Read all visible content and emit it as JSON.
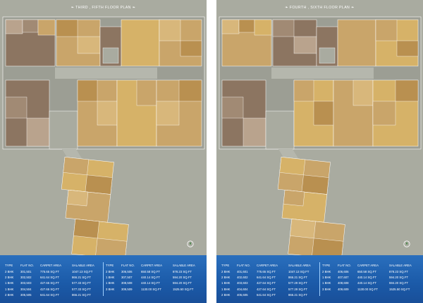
{
  "panels": [
    {
      "title": "THIRD , FIFTH FLOOR PLAN",
      "table": {
        "headers": [
          "TYPE",
          "FLAT NO.",
          "CARPET AREA",
          "SALABLE AREA"
        ],
        "rows_left": [
          [
            "2 BHK",
            "301,501",
            "775.65 SQ.FT",
            "1047.13 SQ.FT"
          ],
          [
            "2 BHK",
            "302,502",
            "641.64 SQ.FT",
            "866.21 SQ.FT"
          ],
          [
            "1 BHK",
            "303,503",
            "427.65 SQ.FT",
            "577.33 SQ.FT"
          ],
          [
            "1 BHK",
            "304,504",
            "427.65 SQ.FT",
            "577.33 SQ.FT"
          ],
          [
            "2 BHK",
            "305,505",
            "641.64 SQ.FT",
            "866.21 SQ.FT"
          ]
        ],
        "rows_right": [
          [
            "2 BHK",
            "306,506",
            "650.58 SQ.FT",
            "878.23 SQ.FT"
          ],
          [
            "1 BHK",
            "307,507",
            "440.14 SQ.FT",
            "594.20 SQ.FT"
          ],
          [
            "1 BHK",
            "308,508",
            "440.14 SQ.FT",
            "594.20 SQ.FT"
          ],
          [
            "3 BHK",
            "309,509",
            "1130.00 SQ.FT",
            "1525.50 SQ.FT"
          ]
        ]
      }
    },
    {
      "title": "FOURTH , SIXTH FLOOR PLAN",
      "table": {
        "headers": [
          "TYPE",
          "FLAT NO.",
          "CARPET AREA",
          "SALABLE AREA"
        ],
        "rows_left": [
          [
            "2 BHK",
            "401,601",
            "775.65 SQ.FT",
            "1047.13 SQ.FT"
          ],
          [
            "2 BHK",
            "402,602",
            "641.64 SQ.FT",
            "866.21 SQ.FT"
          ],
          [
            "1 BHK",
            "403,603",
            "427.64 SQ.FT",
            "577.29 SQ.FT"
          ],
          [
            "1 BHK",
            "404,604",
            "427.64 SQ.FT",
            "577.29 SQ.FT"
          ],
          [
            "2 BHK",
            "405,605",
            "641.64 SQ.FT",
            "866.21 SQ.FT"
          ]
        ],
        "rows_right": [
          [
            "2 BHK",
            "406,606",
            "650.58 SQ.FT",
            "878.23 SQ.FT"
          ],
          [
            "1 BHK",
            "407,607",
            "440.14 SQ.FT",
            "594.20 SQ.FT"
          ],
          [
            "1 BHK",
            "408,608",
            "440.14 SQ.FT",
            "594.20 SQ.FT"
          ],
          [
            "3 BHK",
            "409,609",
            "1130.00 SQ.FT",
            "1525.50 SQ.FT"
          ]
        ]
      }
    }
  ],
  "colors": {
    "background_grey": "#a9aba0",
    "flat_tan": "#c9a56a",
    "flat_brown": "#8c7561",
    "flat_yellow": "#d6b268",
    "table_blue": "#1f5faf"
  },
  "icons": [
    "compass-icon",
    "floor-plan-ornament-icon"
  ]
}
